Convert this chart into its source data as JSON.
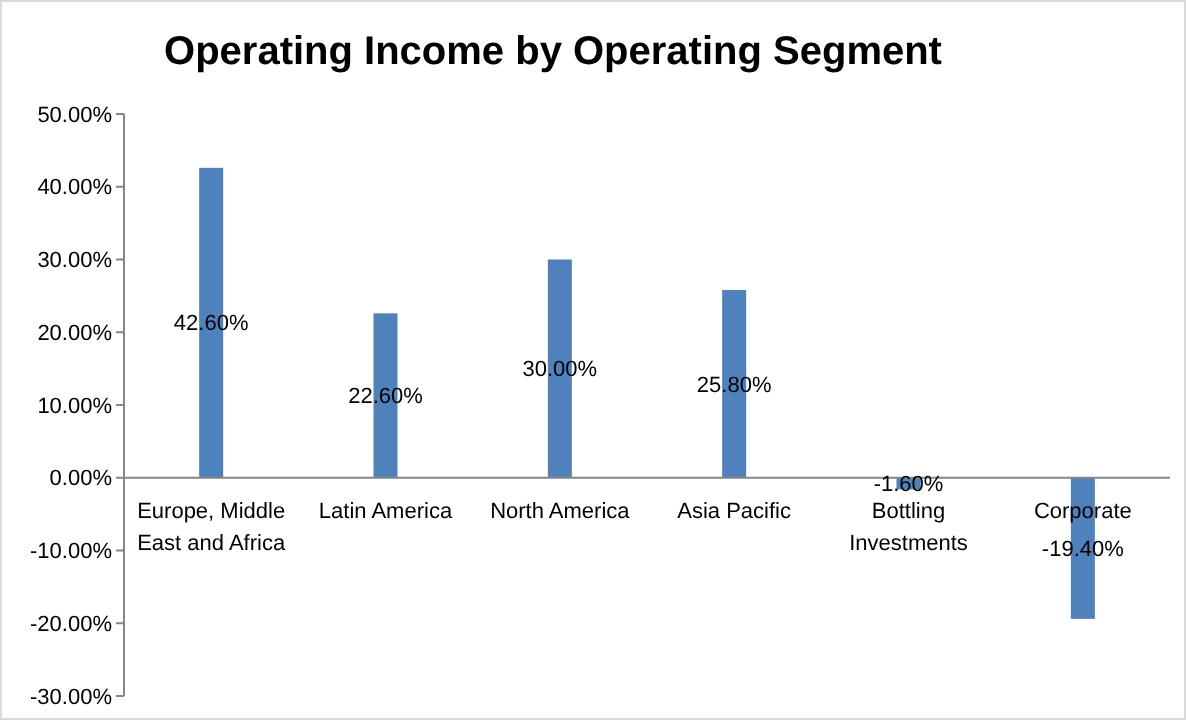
{
  "chart_data": {
    "type": "bar",
    "title": "Operating Income by Operating Segment",
    "categories": [
      "Europe, Middle East and Africa",
      "Latin America",
      "North America",
      "Asia Pacific",
      "Bottling Investments",
      "Corporate"
    ],
    "values": [
      42.6,
      22.6,
      30.0,
      25.8,
      -1.6,
      -19.4
    ],
    "value_labels": [
      "42.60%",
      "22.60%",
      "30.00%",
      "25.80%",
      "-1.60%",
      "-19.40%"
    ],
    "color": "#4f81bd",
    "ylim": [
      -30,
      50
    ],
    "yticks": [
      {
        "value": -30,
        "label": "-30.00%"
      },
      {
        "value": -20,
        "label": "-20.00%"
      },
      {
        "value": -10,
        "label": "-10.00%"
      },
      {
        "value": 0,
        "label": "0.00%"
      },
      {
        "value": 10,
        "label": "10.00%"
      },
      {
        "value": 20,
        "label": "20.00%"
      },
      {
        "value": 30,
        "label": "30.00%"
      },
      {
        "value": 40,
        "label": "40.00%"
      },
      {
        "value": 50,
        "label": "50.00%"
      }
    ],
    "grid": false
  }
}
